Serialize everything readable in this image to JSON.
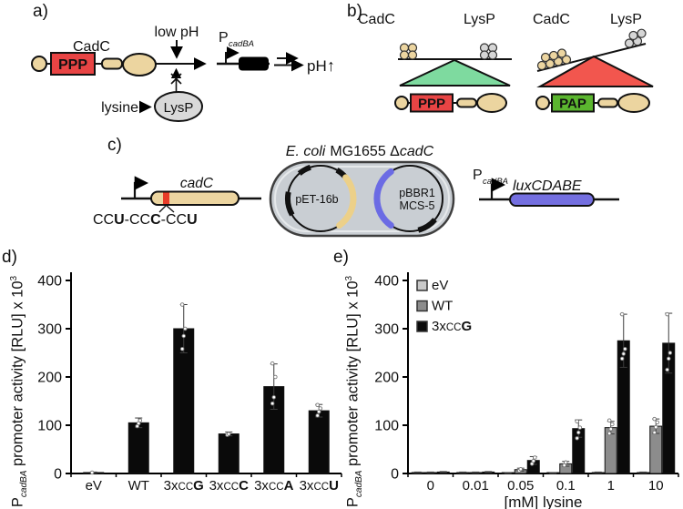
{
  "panel_a": {
    "label": "a)",
    "cadc_label": "CadC",
    "ppp_domain": "PPP",
    "low_ph": "low pH",
    "lysine": "lysine",
    "lysp": "LysP",
    "promoter_p": "P",
    "promoter_sub": "cadBA",
    "ph_text": "pH",
    "up_arrow": "↑"
  },
  "panel_b": {
    "label": "b)",
    "left_cadc": "CadC",
    "left_lysp": "LysP",
    "left_domain": "PPP",
    "right_cadc": "CadC",
    "right_lysp": "LysP",
    "right_domain": "PAP"
  },
  "panel_c": {
    "label": "c)",
    "gene": "cadC",
    "codon_c1": "CC",
    "codon_b1": "U",
    "codon_c2": "-CC",
    "codon_b2": "C",
    "codon_c3": "-CC",
    "codon_b3": "U",
    "strain_em1": "E. coli",
    "strain_mid": "MG1655 Δ",
    "strain_em2": "cadC",
    "plasmid1": "pET-16b",
    "plasmid2_line1": "pBBR1",
    "plasmid2_line2": "MCS-5",
    "promoter_p": "P",
    "promoter_sub": "cadBA",
    "reporter": "luxCDABE"
  },
  "chart_data": [
    {
      "id": "d",
      "type": "bar",
      "panel_label": "d)",
      "ylabel": {
        "p": "P",
        "sub": "cadBA",
        "main": " promoter activity [RLU] x 10",
        "sup": "3"
      },
      "ylim": [
        0,
        400
      ],
      "yticks": [
        0,
        100,
        200,
        300,
        400
      ],
      "grid": false,
      "categories": [
        {
          "text": "eV"
        },
        {
          "text": "WT"
        },
        {
          "pre": "3x",
          "small": "CC",
          "bold": "G"
        },
        {
          "pre": "3x",
          "small": "CC",
          "bold": "C"
        },
        {
          "pre": "3x",
          "small": "CC",
          "bold": "A"
        },
        {
          "pre": "3x",
          "small": "CC",
          "bold": "U"
        }
      ],
      "values": [
        2,
        105,
        300,
        82,
        180,
        130
      ],
      "errors": [
        1,
        10,
        50,
        4,
        47,
        13
      ],
      "points": [
        [
          2
        ],
        [
          98,
          104,
          110
        ],
        [
          258,
          285,
          300,
          350
        ],
        [
          80,
          82
        ],
        [
          145,
          158,
          200,
          228
        ],
        [
          120,
          128,
          135,
          142
        ]
      ],
      "bar_color": "#0a0a0a"
    },
    {
      "id": "e",
      "type": "grouped-bar",
      "panel_label": "e)",
      "xlabel": "[mM] lysine",
      "ylabel": {
        "p": "P",
        "sub": "cadBA",
        "main": " promoter activity [RLU] x 10",
        "sup": "3"
      },
      "ylim": [
        0,
        400
      ],
      "yticks": [
        0,
        100,
        200,
        300,
        400
      ],
      "grid": false,
      "legend_position": "top-left",
      "categories": [
        {
          "text": "0"
        },
        {
          "text": "0.01"
        },
        {
          "text": "0.05"
        },
        {
          "text": "0.1"
        },
        {
          "text": "1"
        },
        {
          "text": "10"
        }
      ],
      "series": [
        {
          "name": {
            "text": "eV"
          },
          "color": "#c9c9c9",
          "values": [
            2,
            2,
            1,
            1,
            2,
            2
          ],
          "errors": [
            1,
            1,
            1,
            1,
            1,
            1
          ],
          "points": [
            [],
            [],
            [],
            [],
            [],
            []
          ]
        },
        {
          "name": {
            "text": "WT"
          },
          "color": "#8c8c8c",
          "values": [
            2,
            2,
            8,
            20,
            95,
            98
          ],
          "errors": [
            1,
            1,
            3,
            5,
            13,
            15
          ],
          "points": [
            [],
            [],
            [
              6,
              9
            ],
            [
              17,
              23
            ],
            [
              83,
              92,
              102,
              110
            ],
            [
              85,
              96,
              106,
              113
            ]
          ]
        },
        {
          "name": {
            "pre": "3x",
            "small": "CC",
            "bold": "G"
          },
          "color": "#0a0a0a",
          "values": [
            3,
            3,
            27,
            93,
            275,
            270
          ],
          "errors": [
            1,
            1,
            8,
            18,
            55,
            62
          ],
          "points": [
            [],
            [],
            [
              20,
              26,
              33
            ],
            [
              73,
              85,
              95,
              108
            ],
            [
              238,
              248,
              258,
              330
            ],
            [
              215,
              238,
              250,
              330
            ]
          ]
        }
      ]
    }
  ]
}
